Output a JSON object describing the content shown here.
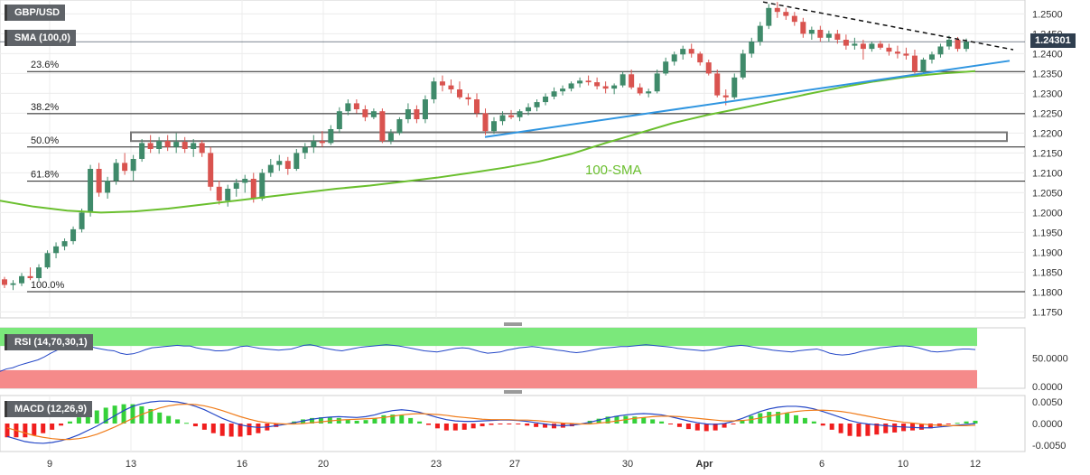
{
  "header": {
    "symbol": "GBP/USD",
    "sma_label": "SMA (100,0)",
    "last_price": "1.24301"
  },
  "annotations": {
    "sma_text": "100-SMA",
    "fib": [
      {
        "label": "23.6%",
        "level": 1.2355
      },
      {
        "label": "38.2%",
        "level": 1.2249
      },
      {
        "label": "50.0%",
        "level": 1.2165
      },
      {
        "label": "61.8%",
        "level": 1.2079
      },
      {
        "label": "100.0%",
        "level": 1.1801
      }
    ]
  },
  "rsi": {
    "label": "RSI (14,70,30,1)",
    "ticks": [
      "50.0000",
      "0.0000"
    ],
    "overbought": 70,
    "oversold": 30,
    "values": [
      28,
      32,
      34,
      38,
      41,
      44,
      47,
      52,
      58,
      63,
      66,
      69,
      71,
      68,
      70,
      67,
      65,
      63,
      62,
      58,
      56,
      57,
      60,
      64,
      67,
      68,
      69,
      70,
      71,
      70,
      70,
      67,
      65,
      64,
      62,
      62,
      63,
      66,
      69,
      70,
      68,
      66,
      65,
      64,
      63,
      64,
      65,
      68,
      71,
      72,
      70,
      67,
      65,
      63,
      62,
      64,
      66,
      68,
      69,
      70,
      71,
      72,
      71,
      70,
      68,
      66,
      64,
      62,
      61,
      60,
      62,
      64,
      66,
      67,
      66,
      63,
      60,
      58,
      59,
      60,
      63,
      65,
      67,
      68,
      69,
      68,
      66,
      65,
      63,
      62,
      60,
      59,
      60,
      62,
      64,
      66,
      67,
      68,
      69,
      69,
      70,
      71,
      72,
      71,
      70,
      69,
      68,
      66,
      65,
      64,
      63,
      62,
      63,
      65,
      67,
      69,
      70,
      71,
      70,
      68,
      66,
      65,
      63,
      62,
      61,
      60,
      62,
      63,
      64,
      65,
      62,
      58,
      56,
      55,
      56,
      58,
      61,
      63,
      65,
      67,
      68,
      69,
      70,
      70,
      69,
      67,
      64,
      61,
      60,
      61,
      62,
      64,
      65,
      65,
      64
    ]
  },
  "macd": {
    "label": "MACD (12,26,9)",
    "ticks": [
      "0.0050",
      "0.0000",
      "-0.0050"
    ],
    "line": [
      -0.003,
      -0.0036,
      -0.0042,
      -0.0045,
      -0.0046,
      -0.0044,
      -0.004,
      -0.0034,
      -0.0026,
      -0.0016,
      -0.0006,
      0.0006,
      0.0018,
      0.003,
      0.004,
      0.0046,
      0.005,
      0.0052,
      0.0052,
      0.005,
      0.0046,
      0.004,
      0.0032,
      0.0022,
      0.0012,
      0.0004,
      -0.0003,
      -0.0007,
      -0.0009,
      -0.0008,
      -0.0005,
      -0.0002,
      0.0002,
      0.0006,
      0.001,
      0.0013,
      0.0015,
      0.0016,
      0.0015,
      0.0014,
      0.0016,
      0.002,
      0.0026,
      0.003,
      0.0032,
      0.003,
      0.0026,
      0.002,
      0.0014,
      0.0009,
      0.0006,
      0.0005,
      0.0005,
      0.0006,
      0.0007,
      0.0008,
      0.0008,
      0.0007,
      0.0005,
      0.0002,
      -0.0001,
      -0.0004,
      -0.0005,
      -0.0004,
      -0.0001,
      0.0003,
      0.0008,
      0.0013,
      0.0017,
      0.002,
      0.0022,
      0.0023,
      0.0022,
      0.002,
      0.0016,
      0.0011,
      0.0006,
      0.0002,
      -0.0001,
      -0.0002,
      0.0,
      0.0005,
      0.0012,
      0.002,
      0.0028,
      0.0034,
      0.0038,
      0.004,
      0.004,
      0.0038,
      0.0034,
      0.0028,
      0.0021,
      0.0014,
      0.0007,
      0.0002,
      -0.0001,
      -0.0003,
      -0.0005,
      -0.0007,
      -0.0008,
      -0.0009,
      -0.001,
      -0.001,
      -0.0008,
      -0.0006,
      -0.0004,
      -0.0002,
      0.0
    ],
    "signal": [
      -0.001,
      -0.0016,
      -0.0022,
      -0.0028,
      -0.0032,
      -0.0035,
      -0.0037,
      -0.0037,
      -0.0035,
      -0.0031,
      -0.0025,
      -0.0017,
      -0.0008,
      0.0002,
      0.0012,
      0.0021,
      0.0029,
      0.0036,
      0.0041,
      0.0044,
      0.0045,
      0.0044,
      0.0041,
      0.0036,
      0.003,
      0.0023,
      0.0016,
      0.001,
      0.0005,
      0.0002,
      0.0,
      -0.0001,
      -0.0001,
      0.0,
      0.0002,
      0.0004,
      0.0006,
      0.0008,
      0.0009,
      0.001,
      0.0011,
      0.0012,
      0.0014,
      0.0017,
      0.002,
      0.0022,
      0.0023,
      0.0022,
      0.0021,
      0.0019,
      0.0016,
      0.0014,
      0.0012,
      0.001,
      0.0009,
      0.0009,
      0.0009,
      0.0008,
      0.0008,
      0.0007,
      0.0005,
      0.0003,
      0.0001,
      0.0,
      -0.0001,
      -0.0001,
      0.0001,
      0.0003,
      0.0006,
      0.0009,
      0.0012,
      0.0014,
      0.0016,
      0.0017,
      0.0017,
      0.0016,
      0.0014,
      0.0012,
      0.001,
      0.0008,
      0.0006,
      0.0006,
      0.0007,
      0.0009,
      0.0013,
      0.0017,
      0.0021,
      0.0025,
      0.0028,
      0.003,
      0.0031,
      0.0031,
      0.003,
      0.0028,
      0.0025,
      0.0021,
      0.0017,
      0.0013,
      0.0009,
      0.0006,
      0.0003,
      0.0001,
      -0.0001,
      -0.0003,
      -0.0004,
      -0.0005,
      -0.0005,
      -0.0005,
      -0.0004
    ]
  },
  "chart_data": {
    "type": "candlestick",
    "title": "GBP/USD",
    "ylim": [
      1.1735,
      1.2535
    ],
    "yticks": [
      "1.2500",
      "1.2450",
      "1.2400",
      "1.2350",
      "1.2300",
      "1.2250",
      "1.2200",
      "1.2150",
      "1.2100",
      "1.2050",
      "1.2000",
      "1.1950",
      "1.1900",
      "1.1850",
      "1.1800",
      "1.1750"
    ],
    "x_labels": [
      "9",
      "13",
      "16",
      "20",
      "23",
      "27",
      "30",
      "Apr",
      "6",
      "10",
      "12"
    ],
    "candles": [
      [
        1.1832,
        1.1838,
        1.181,
        1.1818
      ],
      [
        1.1818,
        1.183,
        1.1805,
        1.1822
      ],
      [
        1.1822,
        1.1848,
        1.1815,
        1.184
      ],
      [
        1.184,
        1.1862,
        1.183,
        1.1835
      ],
      [
        1.1835,
        1.187,
        1.1828,
        1.1862
      ],
      [
        1.1862,
        1.1905,
        1.1858,
        1.1898
      ],
      [
        1.1898,
        1.1925,
        1.1885,
        1.1915
      ],
      [
        1.1915,
        1.1935,
        1.1905,
        1.1928
      ],
      [
        1.1928,
        1.1965,
        1.192,
        1.1958
      ],
      [
        1.1958,
        1.201,
        1.195,
        1.2
      ],
      [
        1.2,
        1.212,
        1.199,
        1.211
      ],
      [
        1.211,
        1.2125,
        1.204,
        1.205
      ],
      [
        1.205,
        1.209,
        1.2035,
        1.208
      ],
      [
        1.208,
        1.2135,
        1.207,
        1.2125
      ],
      [
        1.2125,
        1.215,
        1.2095,
        1.2105
      ],
      [
        1.2105,
        1.2145,
        1.208,
        1.2135
      ],
      [
        1.2135,
        1.2185,
        1.2128,
        1.2175
      ],
      [
        1.2175,
        1.2195,
        1.215,
        1.216
      ],
      [
        1.216,
        1.219,
        1.2148,
        1.218
      ],
      [
        1.218,
        1.2195,
        1.2155,
        1.2165
      ],
      [
        1.2165,
        1.22,
        1.215,
        1.2178
      ],
      [
        1.2178,
        1.219,
        1.215,
        1.216
      ],
      [
        1.216,
        1.2185,
        1.214,
        1.2175
      ],
      [
        1.2175,
        1.2182,
        1.214,
        1.215
      ],
      [
        1.215,
        1.2165,
        1.2055,
        1.2065
      ],
      [
        1.2065,
        1.208,
        1.202,
        1.203
      ],
      [
        1.203,
        1.207,
        1.2015,
        1.206
      ],
      [
        1.206,
        1.2085,
        1.204,
        1.2075
      ],
      [
        1.2075,
        1.2095,
        1.205,
        1.2085
      ],
      [
        1.2085,
        1.21,
        1.2025,
        1.2035
      ],
      [
        1.2035,
        1.211,
        1.203,
        1.21
      ],
      [
        1.21,
        1.2135,
        1.209,
        1.212
      ],
      [
        1.212,
        1.2145,
        1.2105,
        1.213
      ],
      [
        1.213,
        1.214,
        1.2095,
        1.211
      ],
      [
        1.211,
        1.216,
        1.2105,
        1.215
      ],
      [
        1.215,
        1.2175,
        1.2135,
        1.2165
      ],
      [
        1.2165,
        1.2195,
        1.215,
        1.218
      ],
      [
        1.218,
        1.2205,
        1.2165,
        1.2175
      ],
      [
        1.2175,
        1.222,
        1.217,
        1.221
      ],
      [
        1.221,
        1.2265,
        1.22,
        1.2255
      ],
      [
        1.2255,
        1.2285,
        1.2245,
        1.2275
      ],
      [
        1.2275,
        1.2285,
        1.225,
        1.226
      ],
      [
        1.226,
        1.227,
        1.223,
        1.224
      ],
      [
        1.224,
        1.2262,
        1.2235,
        1.2255
      ],
      [
        1.2255,
        1.2262,
        1.2175,
        1.218
      ],
      [
        1.218,
        1.221,
        1.2172,
        1.22
      ],
      [
        1.22,
        1.224,
        1.2195,
        1.2235
      ],
      [
        1.2235,
        1.2275,
        1.2225,
        1.226
      ],
      [
        1.226,
        1.227,
        1.2225,
        1.2235
      ],
      [
        1.2235,
        1.2295,
        1.2225,
        1.2285
      ],
      [
        1.2285,
        1.234,
        1.2275,
        1.233
      ],
      [
        1.233,
        1.2345,
        1.2305,
        1.232
      ],
      [
        1.232,
        1.2335,
        1.23,
        1.231
      ],
      [
        1.231,
        1.233,
        1.2285,
        1.229
      ],
      [
        1.229,
        1.23,
        1.227,
        1.2285
      ],
      [
        1.2285,
        1.23,
        1.224,
        1.225
      ],
      [
        1.225,
        1.2262,
        1.2195,
        1.2205
      ],
      [
        1.2205,
        1.224,
        1.2198,
        1.223
      ],
      [
        1.223,
        1.2255,
        1.222,
        1.2245
      ],
      [
        1.2245,
        1.2258,
        1.2235,
        1.224
      ],
      [
        1.224,
        1.226,
        1.223,
        1.2255
      ],
      [
        1.2255,
        1.2275,
        1.2245,
        1.2265
      ],
      [
        1.2265,
        1.2285,
        1.2255,
        1.2278
      ],
      [
        1.2278,
        1.23,
        1.227,
        1.2292
      ],
      [
        1.2292,
        1.2315,
        1.2285,
        1.2305
      ],
      [
        1.2305,
        1.232,
        1.2295,
        1.2312
      ],
      [
        1.2312,
        1.233,
        1.2305,
        1.2325
      ],
      [
        1.2325,
        1.234,
        1.2315,
        1.2332
      ],
      [
        1.2332,
        1.2345,
        1.232,
        1.2328
      ],
      [
        1.2328,
        1.234,
        1.231,
        1.2318
      ],
      [
        1.2318,
        1.233,
        1.23,
        1.2312
      ],
      [
        1.2312,
        1.2325,
        1.2298,
        1.232
      ],
      [
        1.232,
        1.2355,
        1.2315,
        1.2348
      ],
      [
        1.2348,
        1.236,
        1.231,
        1.2315
      ],
      [
        1.2315,
        1.2325,
        1.2295,
        1.23
      ],
      [
        1.23,
        1.2312,
        1.229,
        1.2305
      ],
      [
        1.2305,
        1.236,
        1.23,
        1.235
      ],
      [
        1.235,
        1.239,
        1.2345,
        1.238
      ],
      [
        1.238,
        1.2405,
        1.237,
        1.2398
      ],
      [
        1.2398,
        1.242,
        1.2385,
        1.2412
      ],
      [
        1.2412,
        1.2425,
        1.239,
        1.24
      ],
      [
        1.24,
        1.2405,
        1.237,
        1.2378
      ],
      [
        1.2378,
        1.2385,
        1.2345,
        1.235
      ],
      [
        1.235,
        1.236,
        1.229,
        1.2295
      ],
      [
        1.2295,
        1.231,
        1.227,
        1.229
      ],
      [
        1.229,
        1.235,
        1.2285,
        1.234
      ],
      [
        1.234,
        1.241,
        1.2335,
        1.24
      ],
      [
        1.24,
        1.244,
        1.239,
        1.243
      ],
      [
        1.243,
        1.248,
        1.242,
        1.247
      ],
      [
        1.247,
        1.2525,
        1.2462,
        1.2515
      ],
      [
        1.2515,
        1.253,
        1.249,
        1.2505
      ],
      [
        1.2505,
        1.2515,
        1.2485,
        1.2495
      ],
      [
        1.2495,
        1.2505,
        1.247,
        1.248
      ],
      [
        1.248,
        1.249,
        1.244,
        1.245
      ],
      [
        1.245,
        1.2468,
        1.2435,
        1.246
      ],
      [
        1.246,
        1.247,
        1.243,
        1.244
      ],
      [
        1.244,
        1.2458,
        1.243,
        1.245
      ],
      [
        1.245,
        1.246,
        1.2425,
        1.2435
      ],
      [
        1.2435,
        1.2448,
        1.241,
        1.242
      ],
      [
        1.242,
        1.244,
        1.241,
        1.2425
      ],
      [
        1.2425,
        1.2435,
        1.2385,
        1.2412
      ],
      [
        1.2412,
        1.243,
        1.2405,
        1.2425
      ],
      [
        1.2425,
        1.2432,
        1.241,
        1.2415
      ],
      [
        1.2415,
        1.2425,
        1.2395,
        1.2405
      ],
      [
        1.2405,
        1.242,
        1.2388,
        1.24
      ],
      [
        1.24,
        1.2415,
        1.2385,
        1.2395
      ],
      [
        1.2395,
        1.241,
        1.235,
        1.2355
      ],
      [
        1.2355,
        1.239,
        1.235,
        1.2385
      ],
      [
        1.2385,
        1.2405,
        1.2375,
        1.2398
      ],
      [
        1.2398,
        1.2425,
        1.239,
        1.2418
      ],
      [
        1.2418,
        1.2445,
        1.241,
        1.2435
      ],
      [
        1.2435,
        1.2442,
        1.2405,
        1.2412
      ],
      [
        1.2412,
        1.2438,
        1.2405,
        1.243
      ]
    ],
    "sma100": [
      1.203,
      1.2015,
      1.2005,
      1.2,
      1.2003,
      1.201,
      1.202,
      1.203,
      1.204,
      1.205,
      1.206,
      1.2068,
      1.2078,
      1.2088,
      1.21,
      1.2113,
      1.2128,
      1.2148,
      1.2175,
      1.22,
      1.2225,
      1.2245,
      1.2262,
      1.228,
      1.2298,
      1.2315,
      1.233,
      1.2342,
      1.235,
      1.2356
    ],
    "sma_x_end": 1.0,
    "support_line": {
      "from": 1.219,
      "to": 1.2382
    },
    "resistance_line": {
      "from": 1.253,
      "to": 1.241
    },
    "box": {
      "top": 1.2202,
      "bottom": 1.218
    }
  }
}
